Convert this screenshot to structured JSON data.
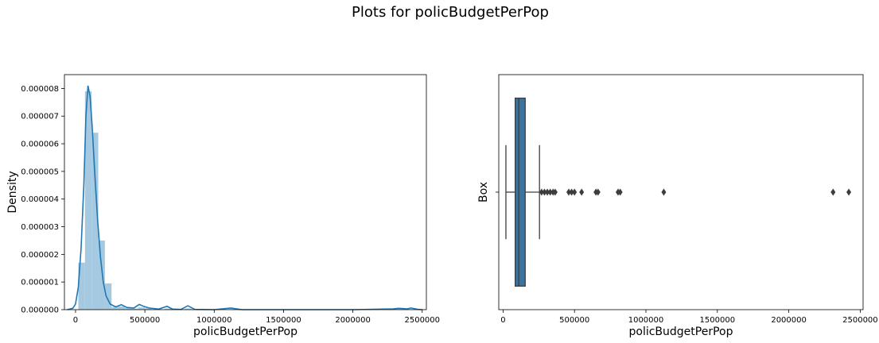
{
  "figure": {
    "title": "Plots for policBudgetPerPop"
  },
  "chart_data": [
    {
      "type": "histogram+kde",
      "xlabel": "policBudgetPerPop",
      "ylabel": "Density",
      "xlim": [
        -80000,
        2530000
      ],
      "ylim": [
        0,
        8.5e-06
      ],
      "xticks": [
        0,
        500000,
        1000000,
        1500000,
        2000000,
        2500000
      ],
      "yticks": [
        0,
        1e-06,
        2e-06,
        3e-06,
        4e-06,
        5e-06,
        6e-06,
        7e-06,
        8e-06
      ],
      "ytick_labels": [
        "0.000000",
        "0.000001",
        "0.000002",
        "0.000003",
        "0.000004",
        "0.000005",
        "0.000006",
        "0.000007",
        "0.000008"
      ],
      "grid": false,
      "hist_color": "#a6c9e2",
      "kde_color": "#1f77b4",
      "histogram": [
        {
          "x0": 20000,
          "x1": 68000,
          "density": 1.7e-06
        },
        {
          "x0": 68000,
          "x1": 116000,
          "density": 7.9e-06
        },
        {
          "x0": 116000,
          "x1": 164000,
          "density": 6.4e-06
        },
        {
          "x0": 164000,
          "x1": 212000,
          "density": 2.5e-06
        },
        {
          "x0": 212000,
          "x1": 260000,
          "density": 9.5e-07
        },
        {
          "x0": 260000,
          "x1": 308000,
          "density": 1e-07
        },
        {
          "x0": 308000,
          "x1": 356000,
          "density": 1.2e-07
        },
        {
          "x0": 356000,
          "x1": 404000,
          "density": 6e-08
        },
        {
          "x0": 404000,
          "x1": 452000,
          "density": 4e-08
        },
        {
          "x0": 452000,
          "x1": 500000,
          "density": 8e-08
        },
        {
          "x0": 500000,
          "x1": 548000,
          "density": 5e-08
        },
        {
          "x0": 644000,
          "x1": 692000,
          "density": 4e-08
        },
        {
          "x0": 788000,
          "x1": 836000,
          "density": 4e-08
        },
        {
          "x0": 1100000,
          "x1": 1148000,
          "density": 2e-08
        },
        {
          "x0": 2300000,
          "x1": 2348000,
          "density": 2e-08
        },
        {
          "x0": 2396000,
          "x1": 2444000,
          "density": 2e-08
        }
      ],
      "kde": [
        [
          -60000,
          0
        ],
        [
          -20000,
          5e-08
        ],
        [
          0,
          2e-07
        ],
        [
          20000,
          8e-07
        ],
        [
          40000,
          2.2e-06
        ],
        [
          60000,
          4.5e-06
        ],
        [
          75000,
          7e-06
        ],
        [
          90000,
          8.1e-06
        ],
        [
          105000,
          7.7e-06
        ],
        [
          120000,
          6.6e-06
        ],
        [
          140000,
          4.8e-06
        ],
        [
          160000,
          3.2e-06
        ],
        [
          180000,
          1.9e-06
        ],
        [
          200000,
          1e-06
        ],
        [
          220000,
          5e-07
        ],
        [
          250000,
          2e-07
        ],
        [
          290000,
          1e-07
        ],
        [
          330000,
          1.8e-07
        ],
        [
          370000,
          8e-08
        ],
        [
          420000,
          6e-08
        ],
        [
          460000,
          1.9e-07
        ],
        [
          490000,
          1.2e-07
        ],
        [
          530000,
          6e-08
        ],
        [
          600000,
          2e-08
        ],
        [
          660000,
          1.2e-07
        ],
        [
          700000,
          2e-08
        ],
        [
          760000,
          1e-08
        ],
        [
          810000,
          1.4e-07
        ],
        [
          860000,
          1e-08
        ],
        [
          1000000,
          0
        ],
        [
          1120000,
          6e-08
        ],
        [
          1200000,
          0
        ],
        [
          2000000,
          0
        ],
        [
          2290000,
          3e-08
        ],
        [
          2330000,
          5e-08
        ],
        [
          2390000,
          3e-08
        ],
        [
          2420000,
          6e-08
        ],
        [
          2470000,
          1e-08
        ],
        [
          2500000,
          0
        ]
      ]
    },
    {
      "type": "box",
      "xlabel": "policBudgetPerPop",
      "ylabel": "Box",
      "xlim": [
        -30000,
        2520000
      ],
      "xticks": [
        0,
        500000,
        1000000,
        1500000,
        2000000,
        2500000
      ],
      "grid": false,
      "box_color": "#3a74a1",
      "whisker_low": 20000,
      "q1": 85000,
      "median": 110000,
      "q3": 155000,
      "whisker_high": 255000,
      "outliers": [
        270000,
        290000,
        310000,
        330000,
        350000,
        365000,
        460000,
        480000,
        500000,
        550000,
        650000,
        665000,
        805000,
        820000,
        1125000,
        2310000,
        2420000
      ]
    }
  ]
}
